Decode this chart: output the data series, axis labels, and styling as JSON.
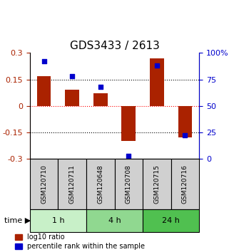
{
  "title": "GDS3433 / 2613",
  "samples": [
    "GSM120710",
    "GSM120711",
    "GSM120648",
    "GSM120708",
    "GSM120715",
    "GSM120716"
  ],
  "log10_ratio": [
    0.17,
    0.09,
    0.07,
    -0.2,
    0.27,
    -0.18
  ],
  "percentile_rank": [
    92,
    78,
    68,
    3,
    88,
    22
  ],
  "time_groups": [
    {
      "label": "1 h",
      "samples": [
        "GSM120710",
        "GSM120711"
      ],
      "color": "#c8f0c8"
    },
    {
      "label": "4 h",
      "samples": [
        "GSM120648",
        "GSM120708"
      ],
      "color": "#90d890"
    },
    {
      "label": "24 h",
      "samples": [
        "GSM120715",
        "GSM120716"
      ],
      "color": "#50c050"
    }
  ],
  "bar_color": "#aa2200",
  "dot_color": "#0000cc",
  "ylim_left": [
    -0.3,
    0.3
  ],
  "ylim_right": [
    0,
    100
  ],
  "yticks_left": [
    -0.3,
    -0.15,
    0,
    0.15,
    0.3
  ],
  "yticks_right": [
    0,
    25,
    50,
    75,
    100
  ],
  "hlines": [
    -0.15,
    0,
    0.15
  ],
  "hline_colors": [
    "black",
    "red",
    "black"
  ],
  "hline_styles": [
    "dotted",
    "dotted",
    "dotted"
  ],
  "bg_color": "white",
  "label_log10": "log10 ratio",
  "label_pct": "percentile rank within the sample"
}
